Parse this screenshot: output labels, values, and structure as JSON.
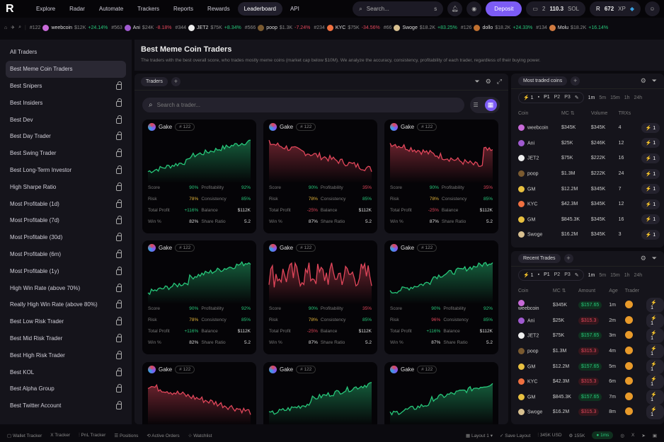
{
  "colors": {
    "accent": "#7c5cf5",
    "up": "#27c77a",
    "down": "#e0465a",
    "warn": "#e2b43a"
  },
  "nav": {
    "items": [
      "Explore",
      "Radar",
      "Automate",
      "Trackers",
      "Reports",
      "Rewards",
      "Leaderboard",
      "API"
    ],
    "active": "Leaderboard",
    "search_placeholder": "Search...",
    "search_shortcut": "s",
    "deposit": "Deposit",
    "wallet_count": "2",
    "balance": "110.3",
    "balance_unit": "SOL",
    "xp": "672",
    "xp_unit": "XP"
  },
  "ticker": [
    {
      "rank": "#122",
      "name": "weebcoin",
      "mc": "$12K",
      "chg": "+24.14%",
      "dir": "up",
      "color": "#c86ad8"
    },
    {
      "rank": "#563",
      "name": "Ani",
      "mc": "$24K",
      "chg": "-8.18%",
      "dir": "dn",
      "color": "#a05ad0"
    },
    {
      "rank": "#344",
      "name": "JET2",
      "mc": "$75K",
      "chg": "+8.34%",
      "dir": "up",
      "color": "#eeeeee"
    },
    {
      "rank": "#566",
      "name": "poop",
      "mc": "$1.3K",
      "chg": "-7.24%",
      "dir": "dn",
      "color": "#7a5a30"
    },
    {
      "rank": "#234",
      "name": "KYC",
      "mc": "$75K",
      "chg": "-34.56%",
      "dir": "dn",
      "color": "#f07040"
    },
    {
      "rank": "#66",
      "name": "Swoge",
      "mc": "$18.2K",
      "chg": "+83.25%",
      "dir": "up",
      "color": "#d8c090"
    },
    {
      "rank": "#126",
      "name": "dollo",
      "mc": "$18.2K",
      "chg": "+24.33%",
      "dir": "up",
      "color": "#c07030"
    },
    {
      "rank": "#134",
      "name": "Molu",
      "mc": "$18.2K",
      "chg": "+16.14%",
      "dir": "up",
      "color": "#d07a40"
    }
  ],
  "sidebar": {
    "items": [
      {
        "label": "All Traders",
        "locked": false
      },
      {
        "label": "Best Meme Coin Traders",
        "locked": false,
        "selected": true
      },
      {
        "label": "Best Snipers",
        "locked": true
      },
      {
        "label": "Best Insiders",
        "locked": true
      },
      {
        "label": "Best Dev",
        "locked": true
      },
      {
        "label": "Best Day Trader",
        "locked": true
      },
      {
        "label": "Best Swing Trader",
        "locked": true
      },
      {
        "label": "Best Long-Term Investor",
        "locked": true
      },
      {
        "label": "High Sharpe Ratio",
        "locked": true
      },
      {
        "label": "Most Profitable (1d)",
        "locked": true
      },
      {
        "label": "Most Profitable (7d)",
        "locked": true
      },
      {
        "label": "Most Profitable (30d)",
        "locked": true
      },
      {
        "label": "Most Profitable (6m)",
        "locked": true
      },
      {
        "label": "Most Profitable (1y)",
        "locked": true
      },
      {
        "label": "High Win Rate (above 70%)",
        "locked": true
      },
      {
        "label": "Really High Win Rate (above 80%)",
        "locked": true
      },
      {
        "label": "Best Low Risk Trader",
        "locked": true
      },
      {
        "label": "Best Mid Risk Trader",
        "locked": true
      },
      {
        "label": "Best High Risk Trader",
        "locked": true
      },
      {
        "label": "Best KOL",
        "locked": true
      },
      {
        "label": "Best Alpha Group",
        "locked": true
      },
      {
        "label": "Best Twitter Account",
        "locked": true
      }
    ]
  },
  "header": {
    "title": "Best Meme Coin Traders",
    "description": "The traders with the best overall score, who trades mostly meme coins (market cap below $10M). We analyze the accuracy, consistency, profitability of each trader, regardless of their buying power."
  },
  "traders_panel": {
    "tab": "Traders",
    "search_placeholder": "Search a trader...",
    "stat_labels": [
      "Score",
      "Profitability",
      "Risk",
      "Consistency",
      "Total Profit",
      "Balance",
      "Win %",
      "Share Ratio"
    ],
    "cards": [
      {
        "name": "Gake",
        "rank": "# 122",
        "trend": "up",
        "stats": [
          [
            "90%",
            "up"
          ],
          [
            "92%",
            "up"
          ],
          [
            "78%",
            "yl"
          ],
          [
            "85%",
            "up"
          ],
          [
            "+116%",
            "up"
          ],
          [
            "$112K",
            "wh"
          ],
          [
            "82%",
            "wh"
          ],
          [
            "5.2",
            "wh"
          ]
        ]
      },
      {
        "name": "Gake",
        "rank": "# 122",
        "trend": "down",
        "stats": [
          [
            "90%",
            "up"
          ],
          [
            "35%",
            "dn"
          ],
          [
            "78%",
            "yl"
          ],
          [
            "85%",
            "up"
          ],
          [
            "-25%",
            "dn"
          ],
          [
            "$112K",
            "wh"
          ],
          [
            "87%",
            "wh"
          ],
          [
            "5.2",
            "wh"
          ]
        ]
      },
      {
        "name": "Gake",
        "rank": "# 122",
        "trend": "down",
        "stats": [
          [
            "90%",
            "up"
          ],
          [
            "35%",
            "dn"
          ],
          [
            "78%",
            "yl"
          ],
          [
            "85%",
            "up"
          ],
          [
            "-25%",
            "dn"
          ],
          [
            "$112K",
            "wh"
          ],
          [
            "87%",
            "wh"
          ],
          [
            "5.2",
            "wh"
          ]
        ]
      },
      {
        "name": "Gake",
        "rank": "# 122",
        "trend": "up",
        "stats": [
          [
            "90%",
            "up"
          ],
          [
            "92%",
            "up"
          ],
          [
            "78%",
            "yl"
          ],
          [
            "85%",
            "up"
          ],
          [
            "+116%",
            "up"
          ],
          [
            "$112K",
            "wh"
          ],
          [
            "82%",
            "wh"
          ],
          [
            "5.2",
            "wh"
          ]
        ]
      },
      {
        "name": "Gake",
        "rank": "# 122",
        "trend": "volatile",
        "stats": [
          [
            "90%",
            "up"
          ],
          [
            "35%",
            "dn"
          ],
          [
            "78%",
            "yl"
          ],
          [
            "85%",
            "up"
          ],
          [
            "-25%",
            "dn"
          ],
          [
            "$112K",
            "wh"
          ],
          [
            "87%",
            "wh"
          ],
          [
            "5.2",
            "wh"
          ]
        ]
      },
      {
        "name": "Gake",
        "rank": "# 122",
        "trend": "up",
        "stats": [
          [
            "90%",
            "up"
          ],
          [
            "92%",
            "up"
          ],
          [
            "96%",
            "dn"
          ],
          [
            "85%",
            "up"
          ],
          [
            "+116%",
            "up"
          ],
          [
            "$112K",
            "wh"
          ],
          [
            "87%",
            "wh"
          ],
          [
            "5.2",
            "wh"
          ]
        ]
      },
      {
        "name": "Gake",
        "rank": "# 122",
        "trend": "down",
        "stats": []
      },
      {
        "name": "Gake",
        "rank": "# 122",
        "trend": "up",
        "stats": []
      },
      {
        "name": "Gake",
        "rank": "# 122",
        "trend": "up",
        "stats": []
      }
    ]
  },
  "filters": {
    "quick_buy": "1",
    "presets": [
      "P1",
      "P2",
      "P3"
    ],
    "timeframes": [
      "1m",
      "5m",
      "15m",
      "1h",
      "24h"
    ]
  },
  "most_traded": {
    "tab": "Most traded coins",
    "columns": [
      "Coin",
      "MC ⇅",
      "Volume",
      "TRXs"
    ],
    "rows": [
      [
        "weebcoin",
        "$345K",
        "$345K",
        "4",
        "#c86ad8"
      ],
      [
        "Ani",
        "$25K",
        "$246K",
        "12",
        "#a05ad0"
      ],
      [
        "JET2",
        "$75K",
        "$222K",
        "16",
        "#eeeeee"
      ],
      [
        "poop",
        "$1.3M",
        "$222K",
        "24",
        "#7a5a30"
      ],
      [
        "GM",
        "$12.2M",
        "$345K",
        "7",
        "#e8c040"
      ],
      [
        "KYC",
        "$42.3M",
        "$345K",
        "12",
        "#f07040"
      ],
      [
        "GM",
        "$845.3K",
        "$345K",
        "16",
        "#e8c040"
      ],
      [
        "Swoge",
        "$16.2M",
        "$345K",
        "3",
        "#d8c090"
      ]
    ]
  },
  "recent_trades": {
    "tab": "Recent Trades",
    "columns": [
      "Coin",
      "MC ⇅",
      "Amount",
      "Age",
      "Trader"
    ],
    "rows": [
      [
        "weebcoin",
        "$345K",
        "$157.65",
        "1m",
        "up",
        "#c86ad8"
      ],
      [
        "Ani",
        "$25K",
        "$315.3",
        "2m",
        "dn",
        "#a05ad0"
      ],
      [
        "JET2",
        "$75K",
        "$157.65",
        "3m",
        "up",
        "#eeeeee"
      ],
      [
        "poop",
        "$1.3M",
        "$315.3",
        "4m",
        "dn",
        "#7a5a30"
      ],
      [
        "GM",
        "$12.2M",
        "$157.65",
        "5m",
        "up",
        "#e8c040"
      ],
      [
        "KYC",
        "$42.3M",
        "$315.3",
        "6m",
        "dn",
        "#f07040"
      ],
      [
        "GM",
        "$845.3K",
        "$157.65",
        "7m",
        "up",
        "#e8c040"
      ],
      [
        "Swoge",
        "$16.2M",
        "$315.3",
        "8m",
        "dn",
        "#d8c090"
      ]
    ]
  },
  "footer": {
    "left": [
      "Wallet Tracker",
      "Tracker",
      "PnL Tracker",
      "Positions",
      "Active Orders",
      "Watchlist"
    ],
    "layout": "Layout 1",
    "save_layout": "Save Layout",
    "volume": "345K USD",
    "count": "155K",
    "latency": "1ms"
  }
}
